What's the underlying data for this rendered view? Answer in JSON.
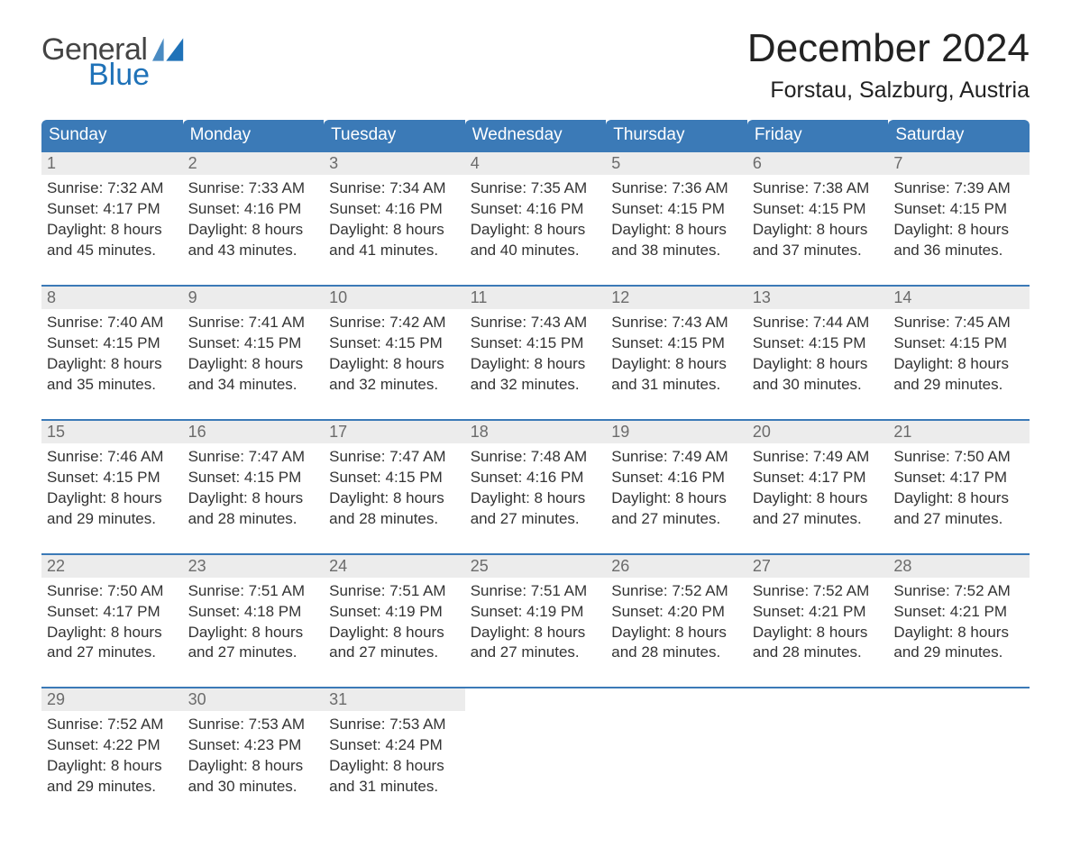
{
  "brand": {
    "name1": "General",
    "name2": "Blue",
    "blue": "#1f72b8"
  },
  "title": {
    "month": "December 2024",
    "location": "Forstau, Salzburg, Austria"
  },
  "colors": {
    "header_bg": "#3b7ab7",
    "daynum_bg": "#ececec",
    "daynum_text": "#6b6b6b",
    "body_text": "#333333",
    "rule": "#3b7ab7",
    "page_bg": "#ffffff"
  },
  "typography": {
    "month_fontsize": 44,
    "location_fontsize": 25,
    "dow_fontsize": 19,
    "daynum_fontsize": 18,
    "cell_fontsize": 17
  },
  "days_of_week": [
    "Sunday",
    "Monday",
    "Tuesday",
    "Wednesday",
    "Thursday",
    "Friday",
    "Saturday"
  ],
  "weeks": [
    [
      {
        "n": "1",
        "sunrise": "Sunrise: 7:32 AM",
        "sunset": "Sunset: 4:17 PM",
        "d1": "Daylight: 8 hours",
        "d2": "and 45 minutes."
      },
      {
        "n": "2",
        "sunrise": "Sunrise: 7:33 AM",
        "sunset": "Sunset: 4:16 PM",
        "d1": "Daylight: 8 hours",
        "d2": "and 43 minutes."
      },
      {
        "n": "3",
        "sunrise": "Sunrise: 7:34 AM",
        "sunset": "Sunset: 4:16 PM",
        "d1": "Daylight: 8 hours",
        "d2": "and 41 minutes."
      },
      {
        "n": "4",
        "sunrise": "Sunrise: 7:35 AM",
        "sunset": "Sunset: 4:16 PM",
        "d1": "Daylight: 8 hours",
        "d2": "and 40 minutes."
      },
      {
        "n": "5",
        "sunrise": "Sunrise: 7:36 AM",
        "sunset": "Sunset: 4:15 PM",
        "d1": "Daylight: 8 hours",
        "d2": "and 38 minutes."
      },
      {
        "n": "6",
        "sunrise": "Sunrise: 7:38 AM",
        "sunset": "Sunset: 4:15 PM",
        "d1": "Daylight: 8 hours",
        "d2": "and 37 minutes."
      },
      {
        "n": "7",
        "sunrise": "Sunrise: 7:39 AM",
        "sunset": "Sunset: 4:15 PM",
        "d1": "Daylight: 8 hours",
        "d2": "and 36 minutes."
      }
    ],
    [
      {
        "n": "8",
        "sunrise": "Sunrise: 7:40 AM",
        "sunset": "Sunset: 4:15 PM",
        "d1": "Daylight: 8 hours",
        "d2": "and 35 minutes."
      },
      {
        "n": "9",
        "sunrise": "Sunrise: 7:41 AM",
        "sunset": "Sunset: 4:15 PM",
        "d1": "Daylight: 8 hours",
        "d2": "and 34 minutes."
      },
      {
        "n": "10",
        "sunrise": "Sunrise: 7:42 AM",
        "sunset": "Sunset: 4:15 PM",
        "d1": "Daylight: 8 hours",
        "d2": "and 32 minutes."
      },
      {
        "n": "11",
        "sunrise": "Sunrise: 7:43 AM",
        "sunset": "Sunset: 4:15 PM",
        "d1": "Daylight: 8 hours",
        "d2": "and 32 minutes."
      },
      {
        "n": "12",
        "sunrise": "Sunrise: 7:43 AM",
        "sunset": "Sunset: 4:15 PM",
        "d1": "Daylight: 8 hours",
        "d2": "and 31 minutes."
      },
      {
        "n": "13",
        "sunrise": "Sunrise: 7:44 AM",
        "sunset": "Sunset: 4:15 PM",
        "d1": "Daylight: 8 hours",
        "d2": "and 30 minutes."
      },
      {
        "n": "14",
        "sunrise": "Sunrise: 7:45 AM",
        "sunset": "Sunset: 4:15 PM",
        "d1": "Daylight: 8 hours",
        "d2": "and 29 minutes."
      }
    ],
    [
      {
        "n": "15",
        "sunrise": "Sunrise: 7:46 AM",
        "sunset": "Sunset: 4:15 PM",
        "d1": "Daylight: 8 hours",
        "d2": "and 29 minutes."
      },
      {
        "n": "16",
        "sunrise": "Sunrise: 7:47 AM",
        "sunset": "Sunset: 4:15 PM",
        "d1": "Daylight: 8 hours",
        "d2": "and 28 minutes."
      },
      {
        "n": "17",
        "sunrise": "Sunrise: 7:47 AM",
        "sunset": "Sunset: 4:15 PM",
        "d1": "Daylight: 8 hours",
        "d2": "and 28 minutes."
      },
      {
        "n": "18",
        "sunrise": "Sunrise: 7:48 AM",
        "sunset": "Sunset: 4:16 PM",
        "d1": "Daylight: 8 hours",
        "d2": "and 27 minutes."
      },
      {
        "n": "19",
        "sunrise": "Sunrise: 7:49 AM",
        "sunset": "Sunset: 4:16 PM",
        "d1": "Daylight: 8 hours",
        "d2": "and 27 minutes."
      },
      {
        "n": "20",
        "sunrise": "Sunrise: 7:49 AM",
        "sunset": "Sunset: 4:17 PM",
        "d1": "Daylight: 8 hours",
        "d2": "and 27 minutes."
      },
      {
        "n": "21",
        "sunrise": "Sunrise: 7:50 AM",
        "sunset": "Sunset: 4:17 PM",
        "d1": "Daylight: 8 hours",
        "d2": "and 27 minutes."
      }
    ],
    [
      {
        "n": "22",
        "sunrise": "Sunrise: 7:50 AM",
        "sunset": "Sunset: 4:17 PM",
        "d1": "Daylight: 8 hours",
        "d2": "and 27 minutes."
      },
      {
        "n": "23",
        "sunrise": "Sunrise: 7:51 AM",
        "sunset": "Sunset: 4:18 PM",
        "d1": "Daylight: 8 hours",
        "d2": "and 27 minutes."
      },
      {
        "n": "24",
        "sunrise": "Sunrise: 7:51 AM",
        "sunset": "Sunset: 4:19 PM",
        "d1": "Daylight: 8 hours",
        "d2": "and 27 minutes."
      },
      {
        "n": "25",
        "sunrise": "Sunrise: 7:51 AM",
        "sunset": "Sunset: 4:19 PM",
        "d1": "Daylight: 8 hours",
        "d2": "and 27 minutes."
      },
      {
        "n": "26",
        "sunrise": "Sunrise: 7:52 AM",
        "sunset": "Sunset: 4:20 PM",
        "d1": "Daylight: 8 hours",
        "d2": "and 28 minutes."
      },
      {
        "n": "27",
        "sunrise": "Sunrise: 7:52 AM",
        "sunset": "Sunset: 4:21 PM",
        "d1": "Daylight: 8 hours",
        "d2": "and 28 minutes."
      },
      {
        "n": "28",
        "sunrise": "Sunrise: 7:52 AM",
        "sunset": "Sunset: 4:21 PM",
        "d1": "Daylight: 8 hours",
        "d2": "and 29 minutes."
      }
    ],
    [
      {
        "n": "29",
        "sunrise": "Sunrise: 7:52 AM",
        "sunset": "Sunset: 4:22 PM",
        "d1": "Daylight: 8 hours",
        "d2": "and 29 minutes."
      },
      {
        "n": "30",
        "sunrise": "Sunrise: 7:53 AM",
        "sunset": "Sunset: 4:23 PM",
        "d1": "Daylight: 8 hours",
        "d2": "and 30 minutes."
      },
      {
        "n": "31",
        "sunrise": "Sunrise: 7:53 AM",
        "sunset": "Sunset: 4:24 PM",
        "d1": "Daylight: 8 hours",
        "d2": "and 31 minutes."
      },
      null,
      null,
      null,
      null
    ]
  ]
}
